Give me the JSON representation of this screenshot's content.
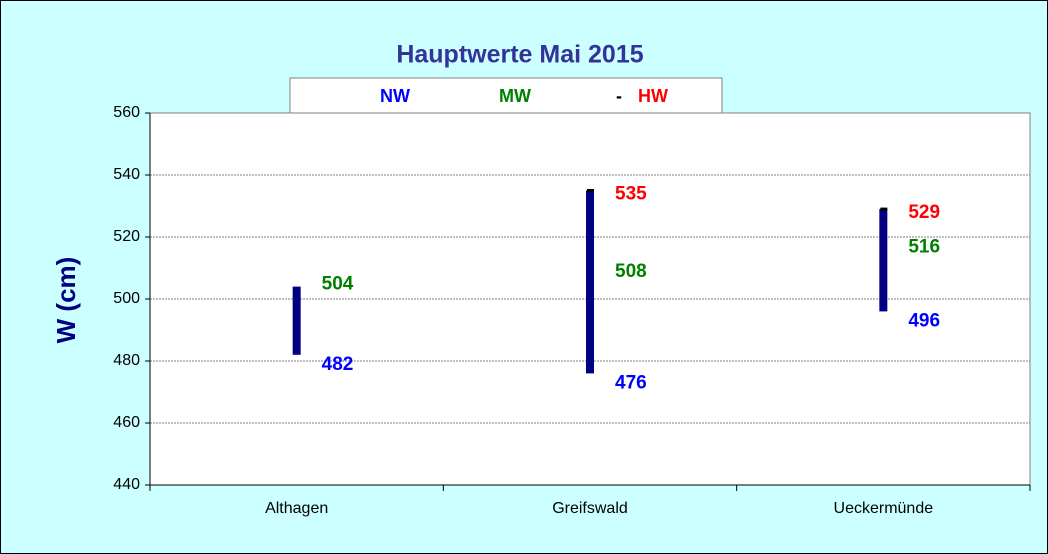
{
  "chart_data": {
    "type": "hilo",
    "title": "Hauptwerte Mai 2015",
    "y_label": "W (cm)",
    "categories": [
      "Althagen",
      "Greifswald",
      "Ueckermünde"
    ],
    "series": [
      {
        "name": "NW",
        "color": "#0000ff",
        "values": [
          482,
          476,
          496
        ]
      },
      {
        "name": "MW",
        "color": "#008000",
        "values": [
          504,
          508,
          516
        ]
      },
      {
        "name": "HW",
        "color": "#ff0000",
        "values": [
          null,
          535,
          529
        ]
      }
    ],
    "bar_color": "#000080",
    "ylim": [
      440,
      560
    ],
    "yticks": [
      440,
      460,
      480,
      500,
      520,
      540,
      560
    ],
    "grid": true
  }
}
